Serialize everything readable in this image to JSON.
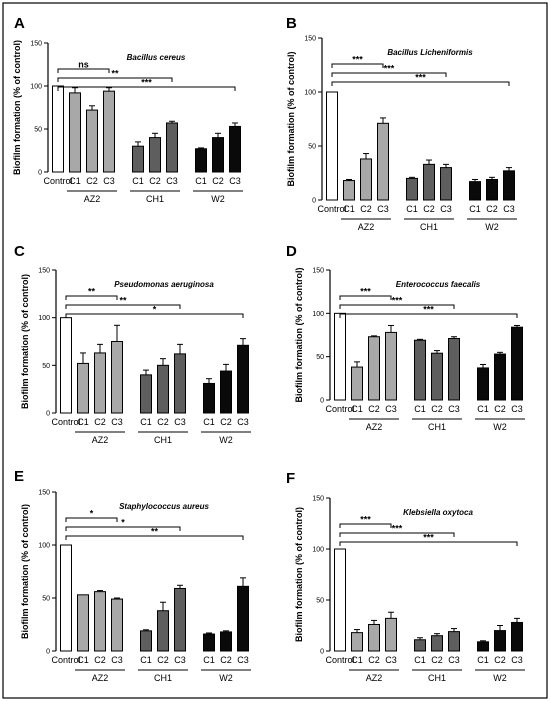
{
  "chart_data": [
    {
      "type": "bar",
      "panel": "A",
      "title": "Bacillus cereus",
      "ylabel": "Biofilm formation (% of control)",
      "ylim": [
        0,
        150
      ],
      "yticks": [
        0,
        50,
        100,
        150
      ],
      "categories": [
        "Control",
        "C1",
        "C2",
        "C3",
        "C1",
        "C2",
        "C3",
        "C1",
        "C2",
        "C3"
      ],
      "groups": [
        "AZ2",
        "CH1",
        "W2"
      ],
      "values": [
        100,
        92,
        72,
        94,
        30,
        40,
        57,
        27,
        40,
        53
      ],
      "errors": [
        0,
        6,
        5,
        4,
        5,
        5,
        2,
        1,
        5,
        4
      ],
      "significance": [
        {
          "label": "ns",
          "from": 0,
          "to": 3
        },
        {
          "label": "**",
          "from": 0,
          "to": 6
        },
        {
          "label": "***",
          "from": 0,
          "to": 9
        }
      ]
    },
    {
      "type": "bar",
      "panel": "B",
      "title": "Bacillus  Licheniformis",
      "ylabel": "Biofilm formation (% of control)",
      "ylim": [
        0,
        150
      ],
      "yticks": [
        0,
        50,
        100,
        150
      ],
      "categories": [
        "Control",
        "C1",
        "C2",
        "C3",
        "C1",
        "C2",
        "C3",
        "C1",
        "C2",
        "C3"
      ],
      "groups": [
        "AZ2",
        "CH1",
        "W2"
      ],
      "values": [
        100,
        18,
        38,
        71,
        20,
        33,
        30,
        17,
        19,
        27
      ],
      "errors": [
        0,
        1,
        5,
        5,
        1,
        4,
        3,
        2,
        2,
        3
      ],
      "significance": [
        {
          "label": "***",
          "from": 0,
          "to": 3
        },
        {
          "label": "***",
          "from": 0,
          "to": 6
        },
        {
          "label": "***",
          "from": 0,
          "to": 9
        }
      ]
    },
    {
      "type": "bar",
      "panel": "C",
      "title": "Pseudomonas aeruginosa",
      "ylabel": "Biofilm formation (% of control)",
      "ylim": [
        0,
        150
      ],
      "yticks": [
        0,
        50,
        100,
        150
      ],
      "categories": [
        "Control",
        "C1",
        "C2",
        "C3",
        "C1",
        "C2",
        "C3",
        "C1",
        "C2",
        "C3"
      ],
      "groups": [
        "AZ2",
        "CH1",
        "W2"
      ],
      "values": [
        100,
        52,
        63,
        75,
        40,
        50,
        62,
        31,
        44,
        71
      ],
      "errors": [
        0,
        11,
        9,
        17,
        5,
        7,
        10,
        5,
        7,
        7
      ],
      "significance": [
        {
          "label": "**",
          "from": 0,
          "to": 3
        },
        {
          "label": "**",
          "from": 0,
          "to": 6
        },
        {
          "label": "*",
          "from": 0,
          "to": 9
        }
      ]
    },
    {
      "type": "bar",
      "panel": "D",
      "title": "Enterococcus faecalis",
      "ylabel": "Biofilm formation (% of control)",
      "ylim": [
        0,
        150
      ],
      "yticks": [
        0,
        50,
        100,
        150
      ],
      "categories": [
        "Control",
        "C1",
        "C2",
        "C3",
        "C1",
        "C2",
        "C3",
        "C1",
        "C2",
        "C3"
      ],
      "groups": [
        "AZ2",
        "CH1",
        "W2"
      ],
      "values": [
        100,
        38,
        73,
        78,
        69,
        54,
        71,
        37,
        53,
        84
      ],
      "errors": [
        0,
        6,
        1,
        8,
        1,
        3,
        2,
        4,
        2,
        2
      ],
      "significance": [
        {
          "label": "***",
          "from": 0,
          "to": 3
        },
        {
          "label": "***",
          "from": 0,
          "to": 6
        },
        {
          "label": "***",
          "from": 0,
          "to": 9
        }
      ]
    },
    {
      "type": "bar",
      "panel": "E",
      "title": "Staphylococcus aureus",
      "ylabel": "Biofilm formation (% of control)",
      "ylim": [
        0,
        150
      ],
      "yticks": [
        0,
        50,
        100,
        150
      ],
      "categories": [
        "Control",
        "C1",
        "C2",
        "C3",
        "C1",
        "C2",
        "C3",
        "C1",
        "C2",
        "C3"
      ],
      "groups": [
        "AZ2",
        "CH1",
        "W2"
      ],
      "values": [
        100,
        53,
        56,
        49,
        19,
        38,
        59,
        16,
        18,
        61
      ],
      "errors": [
        0,
        0,
        1,
        1,
        1,
        8,
        3,
        1,
        1,
        8
      ],
      "significance": [
        {
          "label": "*",
          "from": 0,
          "to": 3
        },
        {
          "label": "*",
          "from": 0,
          "to": 6
        },
        {
          "label": "**",
          "from": 0,
          "to": 9
        }
      ]
    },
    {
      "type": "bar",
      "panel": "F",
      "title": "Klebsiella oxytoca",
      "ylabel": "Biofilm formation (% of control)",
      "ylim": [
        0,
        150
      ],
      "yticks": [
        0,
        50,
        100,
        150
      ],
      "categories": [
        "Control",
        "C1",
        "C2",
        "C3",
        "C1",
        "C2",
        "C3",
        "C1",
        "C2",
        "C3"
      ],
      "groups": [
        "AZ2",
        "CH1",
        "W2"
      ],
      "values": [
        100,
        18,
        26,
        32,
        11,
        15,
        19,
        9,
        20,
        28
      ],
      "errors": [
        0,
        3,
        4,
        6,
        2,
        2,
        3,
        1,
        5,
        4
      ],
      "significance": [
        {
          "label": "***",
          "from": 0,
          "to": 3
        },
        {
          "label": "***",
          "from": 0,
          "to": 6
        },
        {
          "label": "***",
          "from": 0,
          "to": 9
        }
      ]
    }
  ],
  "colors": {
    "control": "#ffffff",
    "az2": "#a8a8a8",
    "ch1": "#5e5e5e",
    "w2": "#0a0a0a",
    "stroke": "#000000"
  }
}
